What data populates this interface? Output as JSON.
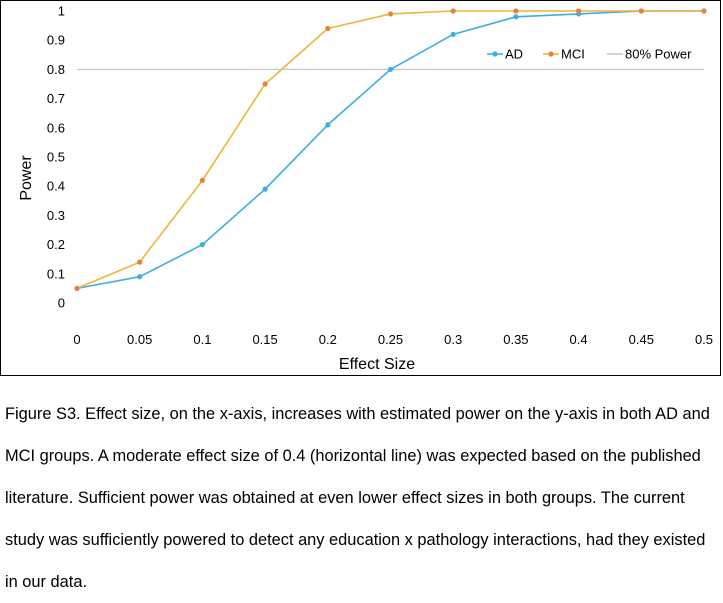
{
  "chart_data": {
    "type": "line",
    "xlabel": "Effect Size",
    "ylabel": "Power",
    "x": [
      0,
      0.05,
      0.1,
      0.15,
      0.2,
      0.25,
      0.3,
      0.35,
      0.4,
      0.45,
      0.5
    ],
    "x_tick_labels": [
      "0",
      "0.05",
      "0.1",
      "0.15",
      "0.2",
      "0.25",
      "0.3",
      "0.35",
      "0.4",
      "0.45",
      "0.5"
    ],
    "y_tick_labels": [
      "0",
      "0.1",
      "0.2",
      "0.3",
      "0.4",
      "0.5",
      "0.6",
      "0.7",
      "0.8",
      "0.9",
      "1"
    ],
    "xlim": [
      0,
      0.5
    ],
    "ylim": [
      0,
      1
    ],
    "grid": false,
    "legend_position": "top-right",
    "series": [
      {
        "name": "AD",
        "color": "#3DADE3",
        "values": [
          0.05,
          0.09,
          0.2,
          0.39,
          0.61,
          0.8,
          0.92,
          0.98,
          0.99,
          1.0,
          1.0
        ]
      },
      {
        "name": "MCI",
        "color": "#F0B43A",
        "marker_color": "#E8823A",
        "values": [
          0.05,
          0.14,
          0.42,
          0.75,
          0.94,
          0.99,
          1.0,
          1.0,
          1.0,
          1.0,
          1.0
        ]
      }
    ],
    "reference_line": {
      "name": "80% Power",
      "y": 0.8,
      "color": "#C8C8C8"
    }
  },
  "caption": "Figure S3. Effect size, on the x-axis, increases with estimated power on the y-axis in both AD and MCI groups. A moderate effect size of 0.4 (horizontal line) was expected based on the published literature. Sufficient power was obtained at even lower effect sizes in both groups. The current study was sufficiently powered to detect any education x pathology interactions, had they existed in our data."
}
